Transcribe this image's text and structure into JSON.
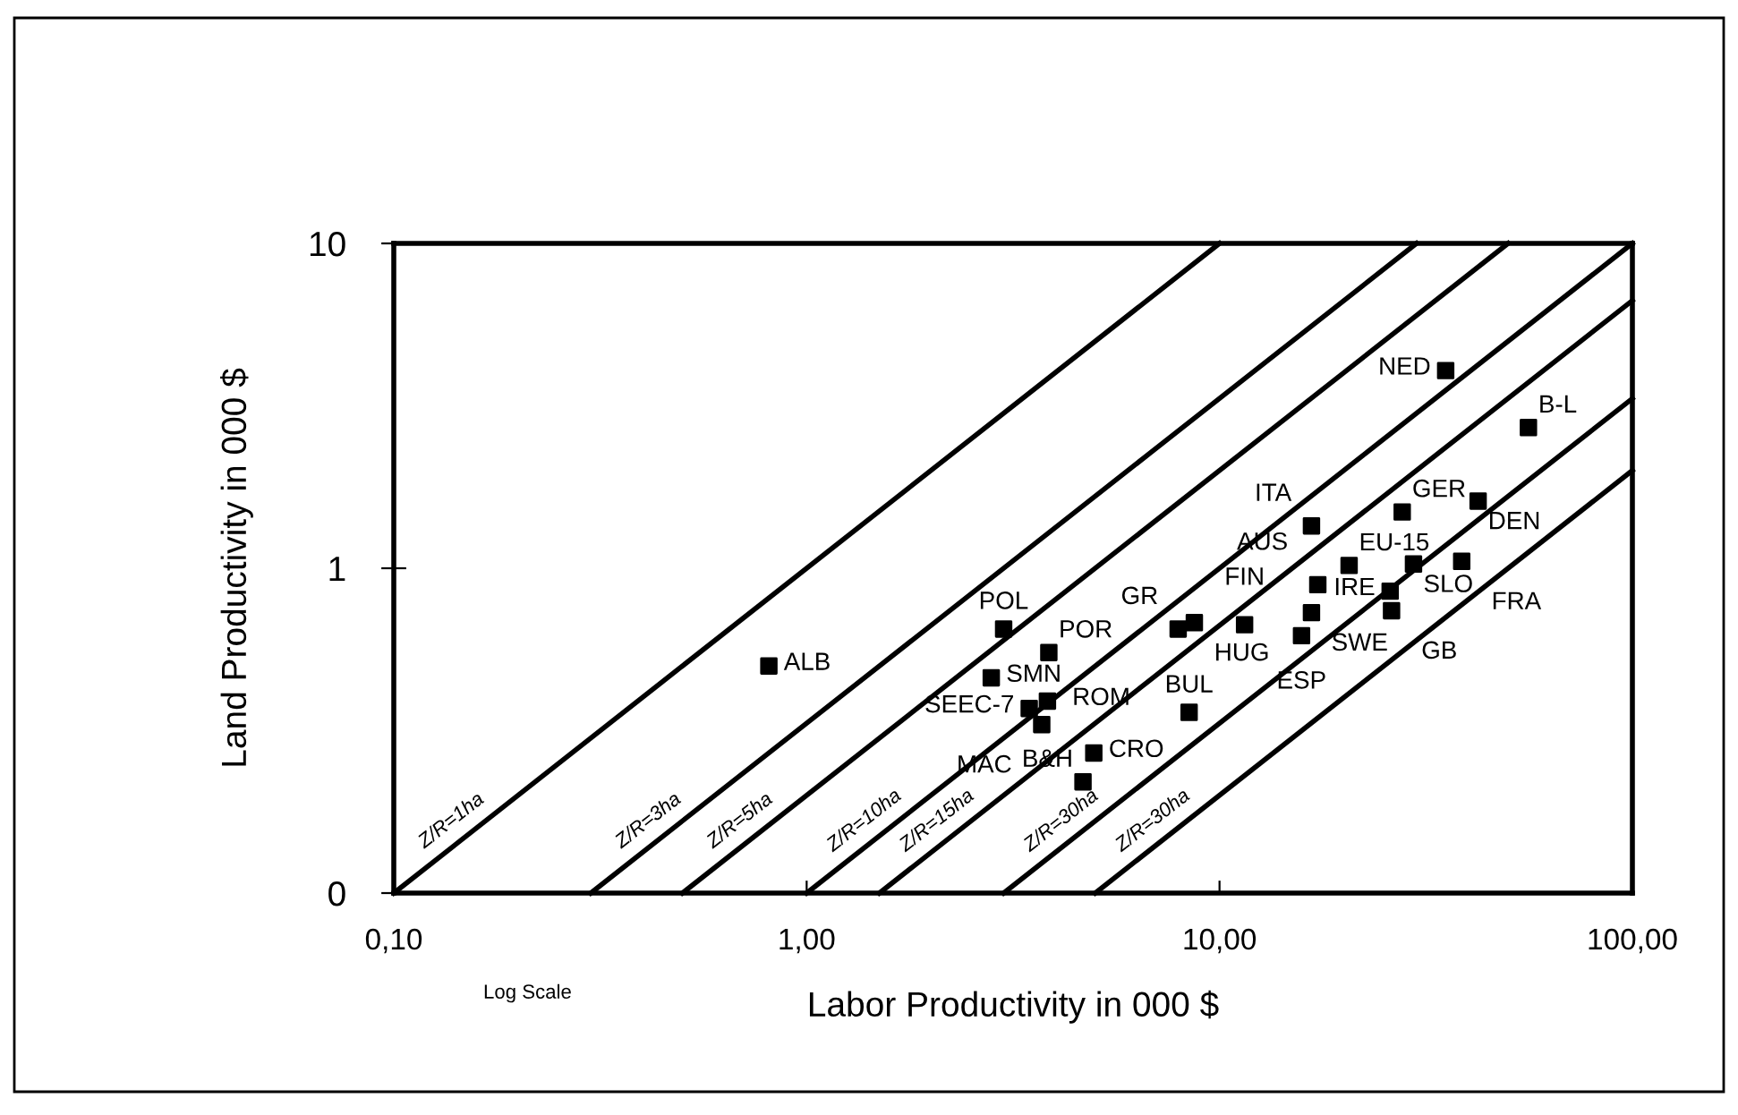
{
  "chart_data": {
    "type": "scatter",
    "xlabel": "Labor Productivity in 000 $",
    "ylabel": "Land Productivity in 000 $",
    "log": "xy",
    "grid": false,
    "legend": false,
    "xlim": [
      0.1,
      100
    ],
    "ylim": [
      0.1,
      10
    ],
    "xticks": [
      {
        "value": 0.1,
        "label": "0,10"
      },
      {
        "value": 1,
        "label": "1,00"
      },
      {
        "value": 10,
        "label": "10,00"
      },
      {
        "value": 100,
        "label": "100,00"
      }
    ],
    "yticks": [
      {
        "value": 0.1,
        "label": "0"
      },
      1,
      10
    ],
    "series": [
      {
        "type": "line",
        "name": "Z/R=1ha",
        "color": "#000000",
        "marker": "none",
        "line_style": "solid",
        "x": [
          0.1,
          10
        ],
        "values": [
          0.1,
          10
        ]
      },
      {
        "type": "line",
        "name": "Z/R=3ha",
        "color": "#000000",
        "marker": "none",
        "line_style": "solid",
        "x": [
          0.3,
          30
        ],
        "values": [
          0.1,
          10
        ]
      },
      {
        "type": "line",
        "name": "Z/R=5ha",
        "color": "#000000",
        "marker": "none",
        "line_style": "solid",
        "x": [
          0.5,
          50
        ],
        "values": [
          0.1,
          10
        ]
      },
      {
        "type": "line",
        "name": "Z/R=10ha",
        "color": "#000000",
        "marker": "none",
        "line_style": "solid",
        "x": [
          1,
          100
        ],
        "values": [
          0.1,
          10
        ]
      },
      {
        "type": "line",
        "name": "Z/R=15ha",
        "color": "#000000",
        "marker": "none",
        "line_style": "solid",
        "x": [
          1.5,
          100
        ],
        "values": [
          0.1,
          6.67
        ]
      },
      {
        "type": "line",
        "name": "Z/R=30ha",
        "color": "#000000",
        "marker": "none",
        "line_style": "solid",
        "x": [
          3,
          100
        ],
        "values": [
          0.1,
          3.33
        ]
      },
      {
        "type": "line",
        "name": "Z/R=30ha",
        "color": "#000000",
        "marker": "none",
        "line_style": "solid",
        "x": [
          5,
          100
        ],
        "values": [
          0.1,
          2
        ]
      },
      {
        "type": "scatter",
        "color": "#000000",
        "marker": "square",
        "x": [
          0.81,
          3.0,
          2.8,
          3.86,
          3.83,
          3.46,
          3.71,
          4.96,
          4.67,
          8.44,
          7.94,
          8.69,
          11.5,
          16.7,
          20.6,
          17.3,
          16.7,
          15.8,
          27.7,
          29.5,
          25.9,
          26.1,
          38.6,
          42.3,
          56,
          35.3
        ],
        "values": [
          0.5,
          0.65,
          0.46,
          0.55,
          0.39,
          0.37,
          0.33,
          0.27,
          0.22,
          0.36,
          0.65,
          0.68,
          0.67,
          1.35,
          1.02,
          0.89,
          0.73,
          0.62,
          1.49,
          1.03,
          0.85,
          0.74,
          1.05,
          1.61,
          2.71,
          4.06
        ]
      }
    ],
    "annotations": [
      {
        "text": "ALB",
        "x": 0.81,
        "y": 0.5
      },
      {
        "text": "POL",
        "x": 3.0,
        "y": 0.65
      },
      {
        "text": "SMN",
        "x": 2.8,
        "y": 0.46
      },
      {
        "text": "POR",
        "x": 3.86,
        "y": 0.55
      },
      {
        "text": "ROM",
        "x": 3.83,
        "y": 0.39
      },
      {
        "text": "SEEC-7",
        "x": 3.46,
        "y": 0.37
      },
      {
        "text": "MAC",
        "x": 3.71,
        "y": 0.33
      },
      {
        "text": "CRO",
        "x": 4.96,
        "y": 0.27
      },
      {
        "text": "B&H",
        "x": 4.67,
        "y": 0.22
      },
      {
        "text": "BUL",
        "x": 8.44,
        "y": 0.36
      },
      {
        "text": "GR",
        "x": 7.94,
        "y": 0.65
      },
      {
        "text": "HUG",
        "x": 8.69,
        "y": 0.68
      },
      {
        "text": "FIN",
        "x": 11.5,
        "y": 0.67
      },
      {
        "text": "ITA",
        "x": 16.7,
        "y": 1.35
      },
      {
        "text": "EU-15",
        "x": 20.6,
        "y": 1.02
      },
      {
        "text": "AUS",
        "x": 17.3,
        "y": 0.89
      },
      {
        "text": "SWE",
        "x": 16.7,
        "y": 0.73
      },
      {
        "text": "ESP",
        "x": 15.8,
        "y": 0.62
      },
      {
        "text": "GER",
        "x": 27.7,
        "y": 1.49
      },
      {
        "text": "SLO",
        "x": 29.5,
        "y": 1.03
      },
      {
        "text": "IRE",
        "x": 25.9,
        "y": 0.85
      },
      {
        "text": "GB",
        "x": 26.1,
        "y": 0.74
      },
      {
        "text": "FRA",
        "x": 38.6,
        "y": 1.05
      },
      {
        "text": "DEN",
        "x": 42.3,
        "y": 1.61
      },
      {
        "text": "B-L",
        "x": 56,
        "y": 2.71
      },
      {
        "text": "NED",
        "x": 35.3,
        "y": 4.06
      },
      "Log Scale"
    ]
  }
}
